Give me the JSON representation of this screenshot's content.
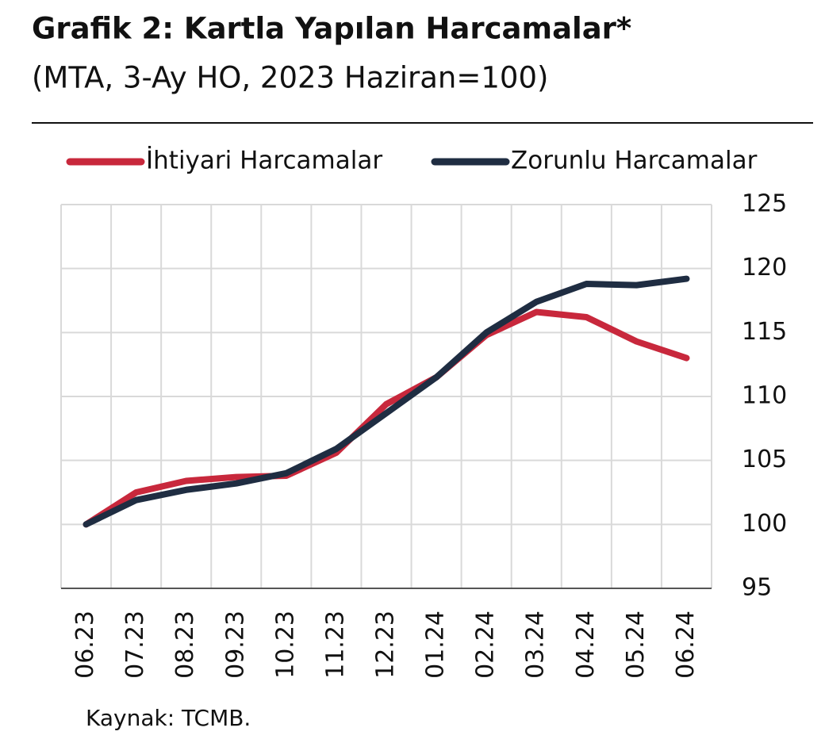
{
  "chart_data": {
    "type": "line",
    "title": "Grafik 2: Kartla Yapılan Harcamalar*",
    "subtitle": "(MTA, 3-Ay HO, 2023 Haziran=100)",
    "source": "Kaynak: TCMB.",
    "categories": [
      "06.23",
      "07.23",
      "08.23",
      "09.23",
      "10.23",
      "11.23",
      "12.23",
      "01.24",
      "02.24",
      "03.24",
      "04.24",
      "05.24",
      "06.24"
    ],
    "series": [
      {
        "name": "İhtiyari Harcamalar",
        "color": "#c8283c",
        "values": [
          100,
          102.5,
          103.4,
          103.7,
          103.8,
          105.6,
          109.4,
          111.5,
          114.8,
          116.6,
          116.2,
          114.3,
          113.0
        ]
      },
      {
        "name": "Zorunlu Harcamalar",
        "color": "#1f2d42",
        "values": [
          100,
          101.9,
          102.7,
          103.2,
          104.0,
          105.9,
          108.7,
          111.5,
          115.0,
          117.4,
          118.8,
          118.7,
          119.2
        ]
      }
    ],
    "ylim": [
      95,
      125
    ],
    "yticks": [
      95,
      100,
      105,
      110,
      115,
      120,
      125
    ],
    "grid": true
  }
}
